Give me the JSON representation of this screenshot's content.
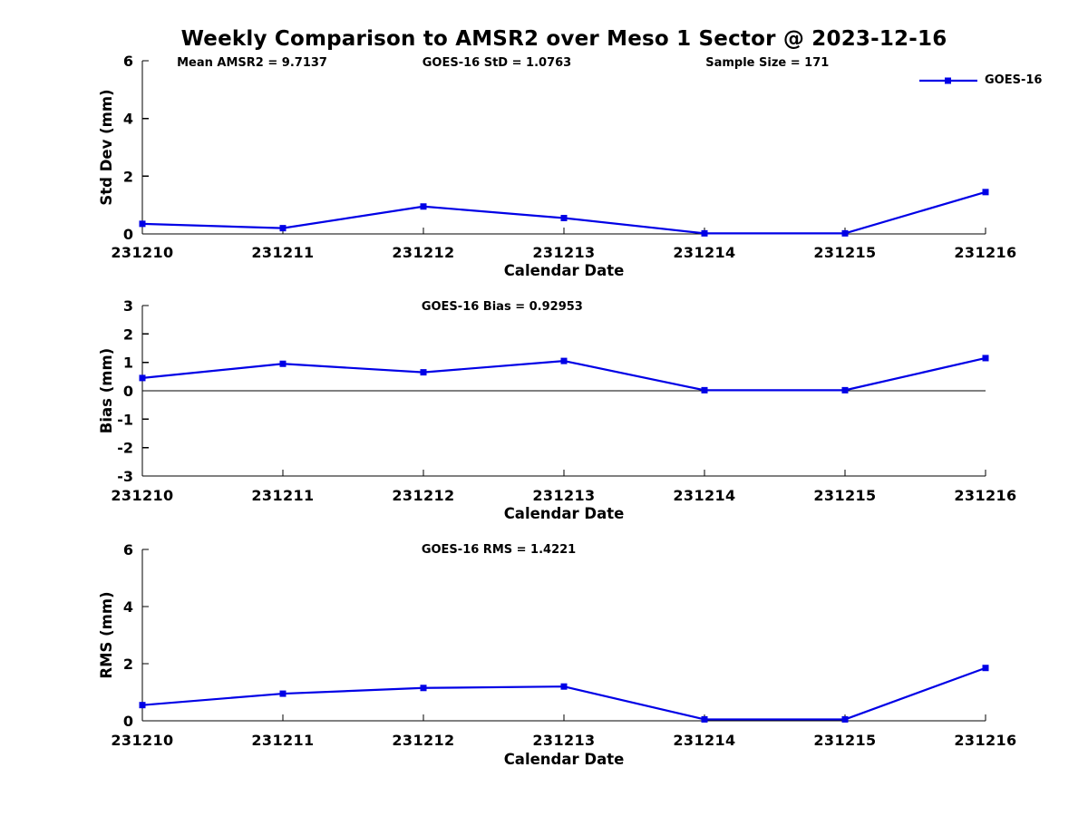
{
  "title": "Weekly Comparison to AMSR2 over Meso 1 Sector @ 2023-12-16",
  "legend": {
    "label": "GOES-16"
  },
  "colors": {
    "line": "#0000e6",
    "axis": "#000000",
    "text": "#000000"
  },
  "chart_data": [
    {
      "type": "line",
      "name": "std-dev-plot",
      "categories": [
        "231210",
        "231211",
        "231212",
        "231213",
        "231214",
        "231215",
        "231216"
      ],
      "series": [
        {
          "name": "GOES-16",
          "values": [
            0.35,
            0.2,
            0.95,
            0.55,
            0.02,
            0.02,
            1.45
          ]
        }
      ],
      "xlabel": "Calendar Date",
      "ylabel": "Std Dev (mm)",
      "ylim": [
        0,
        6
      ],
      "yticks": [
        0,
        2,
        4,
        6
      ],
      "zero_line": false,
      "grid": false,
      "annotations": [
        {
          "text": "Mean AMSR2 = 9.7137",
          "xfrac": 0.041
        },
        {
          "text": "GOES-16 StD = 1.0763",
          "xfrac": 0.332
        },
        {
          "text": "Sample Size = 171",
          "xfrac": 0.668
        }
      ]
    },
    {
      "type": "line",
      "name": "bias-plot",
      "categories": [
        "231210",
        "231211",
        "231212",
        "231213",
        "231214",
        "231215",
        "231216"
      ],
      "series": [
        {
          "name": "GOES-16",
          "values": [
            0.45,
            0.95,
            0.65,
            1.05,
            0.02,
            0.02,
            1.15
          ]
        }
      ],
      "xlabel": "Calendar Date",
      "ylabel": "Bias (mm)",
      "ylim": [
        -3,
        3
      ],
      "yticks": [
        -3,
        -2,
        -1,
        0,
        1,
        2,
        3
      ],
      "zero_line": true,
      "grid": false,
      "annotations": [
        {
          "text": "GOES-16 Bias  = 0.92953",
          "xfrac": 0.331
        }
      ]
    },
    {
      "type": "line",
      "name": "rms-plot",
      "categories": [
        "231210",
        "231211",
        "231212",
        "231213",
        "231214",
        "231215",
        "231216"
      ],
      "series": [
        {
          "name": "GOES-16",
          "values": [
            0.55,
            0.95,
            1.15,
            1.2,
            0.05,
            0.05,
            1.85
          ]
        }
      ],
      "xlabel": "Calendar Date",
      "ylabel": "RMS (mm)",
      "ylim": [
        0,
        6
      ],
      "yticks": [
        0,
        2,
        4,
        6
      ],
      "zero_line": false,
      "grid": false,
      "annotations": [
        {
          "text": "GOES-16 RMS = 1.4221",
          "xfrac": 0.331
        }
      ]
    }
  ]
}
